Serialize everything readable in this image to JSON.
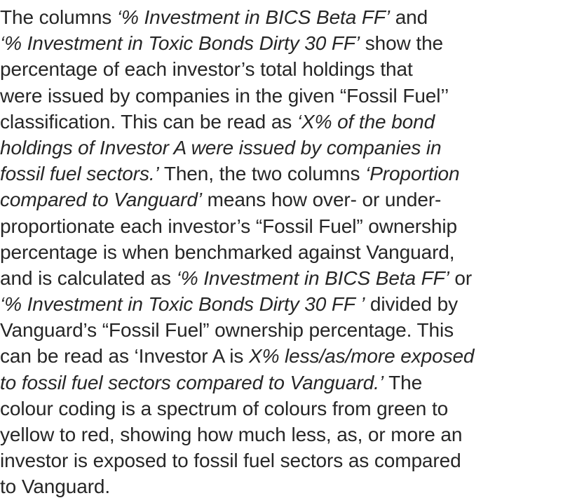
{
  "paragraph": {
    "lines": [
      [
        {
          "text": "The columns ",
          "italic": false
        },
        {
          "text": "‘% Investment in BICS Beta FF’",
          "italic": true
        },
        {
          "text": " and",
          "italic": false
        }
      ],
      [
        {
          "text": "‘% Investment in Toxic Bonds Dirty 30 FF’",
          "italic": true
        },
        {
          "text": " show the",
          "italic": false
        }
      ],
      [
        {
          "text": "percentage of each investor’s total holdings that",
          "italic": false
        }
      ],
      [
        {
          "text": "were issued by companies in the given “Fossil Fuel’’",
          "italic": false
        }
      ],
      [
        {
          "text": "classification. This can be read as ",
          "italic": false
        },
        {
          "text": "‘X% of the bond",
          "italic": true
        }
      ],
      [
        {
          "text": "holdings of Investor A were issued by companies in",
          "italic": true
        }
      ],
      [
        {
          "text": "fossil fuel sectors.’",
          "italic": true
        },
        {
          "text": " Then, the two columns ",
          "italic": false
        },
        {
          "text": "‘Proportion",
          "italic": true
        }
      ],
      [
        {
          "text": "compared to Vanguard’",
          "italic": true
        },
        {
          "text": " means how over- or under-",
          "italic": false
        }
      ],
      [
        {
          "text": "proportionate each investor’s “Fossil Fuel” ownership",
          "italic": false
        }
      ],
      [
        {
          "text": "percentage is when benchmarked against Vanguard,",
          "italic": false
        }
      ],
      [
        {
          "text": "and is calculated as ",
          "italic": false
        },
        {
          "text": "‘% Investment in BICS Beta FF’",
          "italic": true
        },
        {
          "text": " or",
          "italic": false
        }
      ],
      [
        {
          "text": "‘% Investment in Toxic Bonds Dirty 30 FF ’",
          "italic": true
        },
        {
          "text": " divided by",
          "italic": false
        }
      ],
      [
        {
          "text": "Vanguard’s “Fossil Fuel” ownership percentage. This",
          "italic": false
        }
      ],
      [
        {
          "text": "can be read as ‘Investor A is ",
          "italic": false
        },
        {
          "text": "X% less/as/more exposed",
          "italic": true
        }
      ],
      [
        {
          "text": "to fossil fuel sectors compared to Vanguard.’",
          "italic": true
        },
        {
          "text": " The",
          "italic": false
        }
      ],
      [
        {
          "text": "colour coding is a spectrum of colours from green to",
          "italic": false
        }
      ],
      [
        {
          "text": "yellow to red, showing how much less, as, or more an",
          "italic": false
        }
      ],
      [
        {
          "text": "investor is exposed to fossil fuel sectors as compared",
          "italic": false
        }
      ],
      [
        {
          "text": "to Vanguard.",
          "italic": false
        }
      ]
    ]
  }
}
